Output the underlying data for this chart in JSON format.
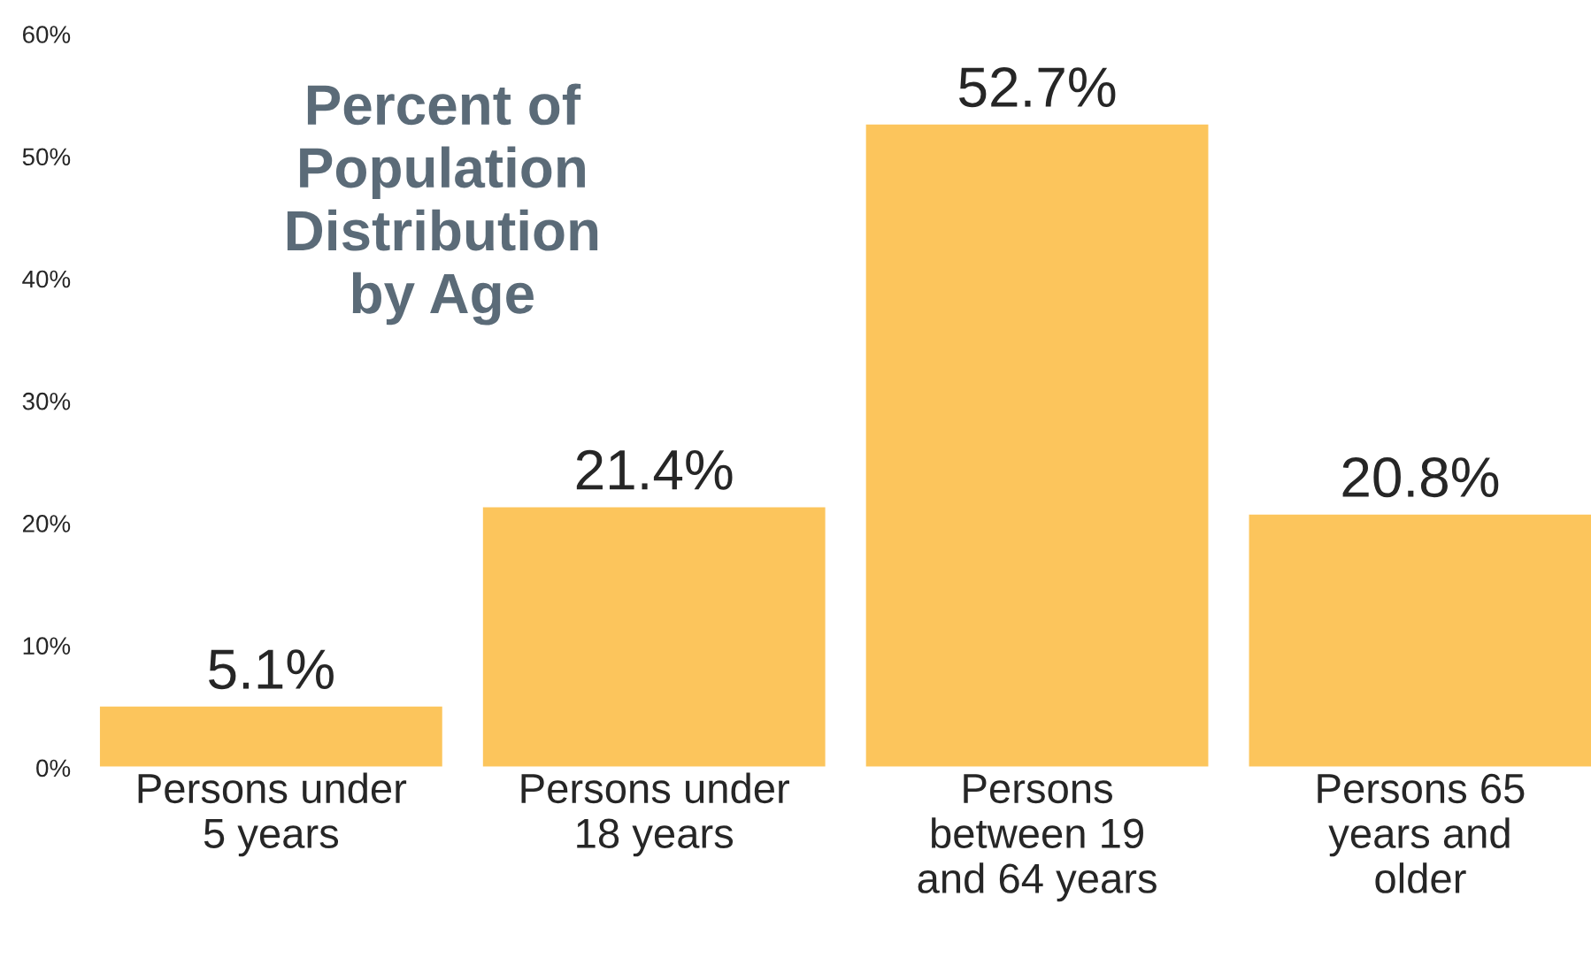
{
  "chart_data": {
    "type": "bar",
    "title": "Percent of\nPopulation\nDistribution\nby Age",
    "categories": [
      "Persons under\n5 years",
      "Persons under\n18 years",
      "Persons\nbetween 19\nand 64 years",
      "Persons 65\nyears and\nolder"
    ],
    "values": [
      5.1,
      21.4,
      52.7,
      20.8
    ],
    "value_labels": [
      "5.1%",
      "21.4%",
      "52.7%",
      "20.8%"
    ],
    "color": "#fcc55c",
    "ylim": [
      0,
      60
    ],
    "yticks": [
      {
        "value": 0,
        "label": "0%"
      },
      {
        "value": 10,
        "label": "10%"
      },
      {
        "value": 20,
        "label": "20%"
      },
      {
        "value": 30,
        "label": "30%"
      },
      {
        "value": 40,
        "label": "40%"
      },
      {
        "value": 50,
        "label": "50%"
      },
      {
        "value": 60,
        "label": "60%"
      }
    ],
    "grid": false,
    "legend": false
  }
}
